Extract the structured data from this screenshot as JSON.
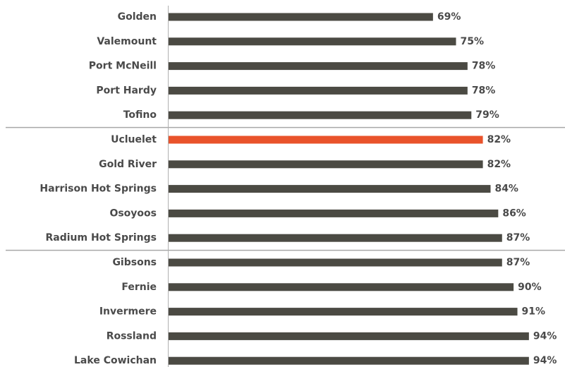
{
  "chart_data": {
    "type": "hbar",
    "categories": [
      "Golden",
      "Valemount",
      "Port McNeill",
      "Port Hardy",
      "Tofino",
      "Ucluelet",
      "Gold River",
      "Harrison Hot Springs",
      "Osoyoos",
      "Radium Hot Springs",
      "Gibsons",
      "Fernie",
      "Invermere",
      "Rossland",
      "Lake Cowichan"
    ],
    "values": [
      69,
      75,
      78,
      78,
      79,
      82,
      82,
      84,
      86,
      87,
      87,
      90,
      91,
      94,
      94
    ],
    "value_labels": [
      "69%",
      "75%",
      "78%",
      "78%",
      "79%",
      "82%",
      "82%",
      "84%",
      "86%",
      "87%",
      "87%",
      "90%",
      "91%",
      "94%",
      "94%"
    ],
    "colors": [
      "#4b4a43",
      "#4b4a43",
      "#4b4a43",
      "#4b4a43",
      "#4b4a43",
      "#e9532b",
      "#4b4a43",
      "#4b4a43",
      "#4b4a43",
      "#4b4a43",
      "#4b4a43",
      "#4b4a43",
      "#4b4a43",
      "#4b4a43",
      "#4b4a43"
    ]
  }
}
